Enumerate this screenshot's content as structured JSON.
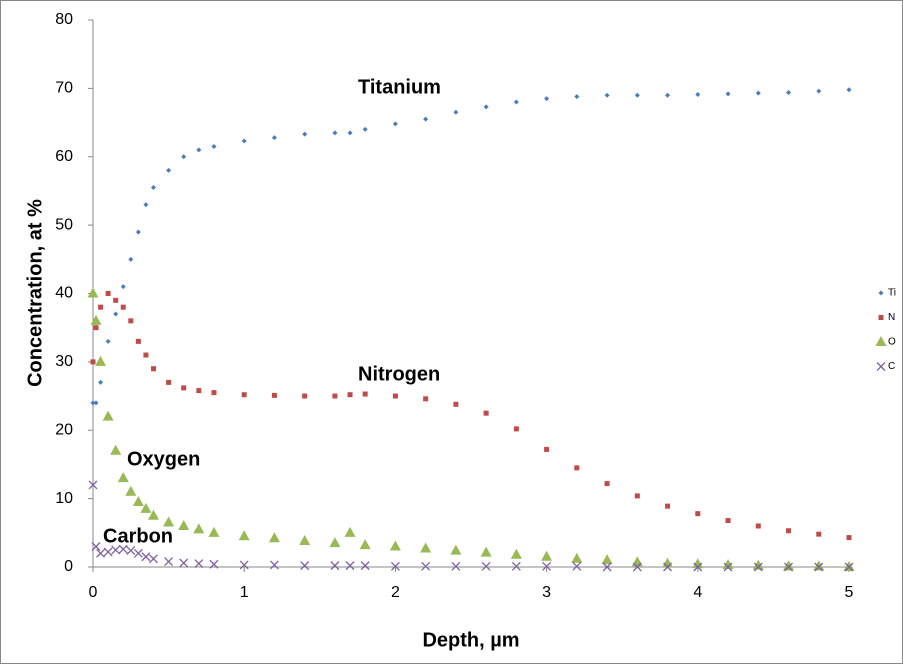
{
  "chart_data": {
    "type": "scatter",
    "x_label": "Depth, µm",
    "y_label": "Concentration, at %",
    "annotations": [
      "Titanium",
      "Nitrogen",
      "Oxygen",
      "Carbon"
    ],
    "x": [
      0,
      0.02,
      0.05,
      0.1,
      0.15,
      0.2,
      0.25,
      0.3,
      0.35,
      0.4,
      0.5,
      0.6,
      0.7,
      0.8,
      1.0,
      1.2,
      1.4,
      1.6,
      1.7,
      1.8,
      2.0,
      2.2,
      2.4,
      2.6,
      2.8,
      3.0,
      3.2,
      3.4,
      3.6,
      3.8,
      4.0,
      4.2,
      4.4,
      4.6,
      4.8,
      5.0
    ],
    "series": [
      {
        "name": "Ti",
        "color": "#4a7ebb",
        "marker": "diamond",
        "values": [
          24,
          24,
          27,
          33,
          37,
          41,
          45,
          49,
          53,
          55.5,
          58,
          60,
          61,
          61.5,
          62.3,
          62.8,
          63.3,
          63.5,
          63.5,
          64,
          64.8,
          65.5,
          66.5,
          67.3,
          68,
          68.5,
          68.8,
          69,
          69,
          69,
          69.1,
          69.2,
          69.3,
          69.4,
          69.6,
          69.8
        ]
      },
      {
        "name": "N",
        "color": "#be4b48",
        "marker": "square",
        "values": [
          30,
          35,
          38,
          40,
          39,
          38,
          36,
          33,
          31,
          29,
          27,
          26.2,
          25.8,
          25.5,
          25.2,
          25.1,
          25,
          25,
          25.2,
          25.3,
          25,
          24.6,
          23.8,
          22.5,
          20.2,
          17.2,
          14.5,
          12.2,
          10.4,
          8.9,
          7.8,
          6.8,
          6.0,
          5.3,
          4.8,
          4.3
        ]
      },
      {
        "name": "O",
        "color": "#98b954",
        "marker": "triangle",
        "values": [
          40,
          36,
          30,
          22,
          17,
          13,
          11,
          9.5,
          8.5,
          7.5,
          6.5,
          6,
          5.5,
          5,
          4.5,
          4.2,
          3.8,
          3.5,
          5,
          3.2,
          3,
          2.7,
          2.4,
          2.1,
          1.8,
          1.5,
          1.2,
          1.0,
          0.7,
          0.5,
          0.4,
          0.3,
          0.2,
          0.1,
          0.1,
          0
        ]
      },
      {
        "name": "C",
        "color": "#7d60a0",
        "marker": "cross",
        "values": [
          12,
          3,
          2,
          2.2,
          2.5,
          2.6,
          2.4,
          2,
          1.5,
          1.2,
          0.8,
          0.6,
          0.5,
          0.4,
          0.3,
          0.3,
          0.2,
          0.2,
          0.2,
          0.2,
          0.1,
          0.1,
          0.1,
          0.1,
          0.1,
          0.1,
          0.1,
          0,
          0,
          0,
          0,
          0,
          0,
          0,
          0,
          0
        ]
      }
    ],
    "xlim": [
      0,
      5
    ],
    "xticks": [
      0,
      1,
      2,
      3,
      4,
      5
    ],
    "ylim": [
      0,
      80
    ],
    "yticks": [
      0,
      10,
      20,
      30,
      40,
      50,
      60,
      70,
      80
    ],
    "grid": false,
    "legend": "right"
  }
}
